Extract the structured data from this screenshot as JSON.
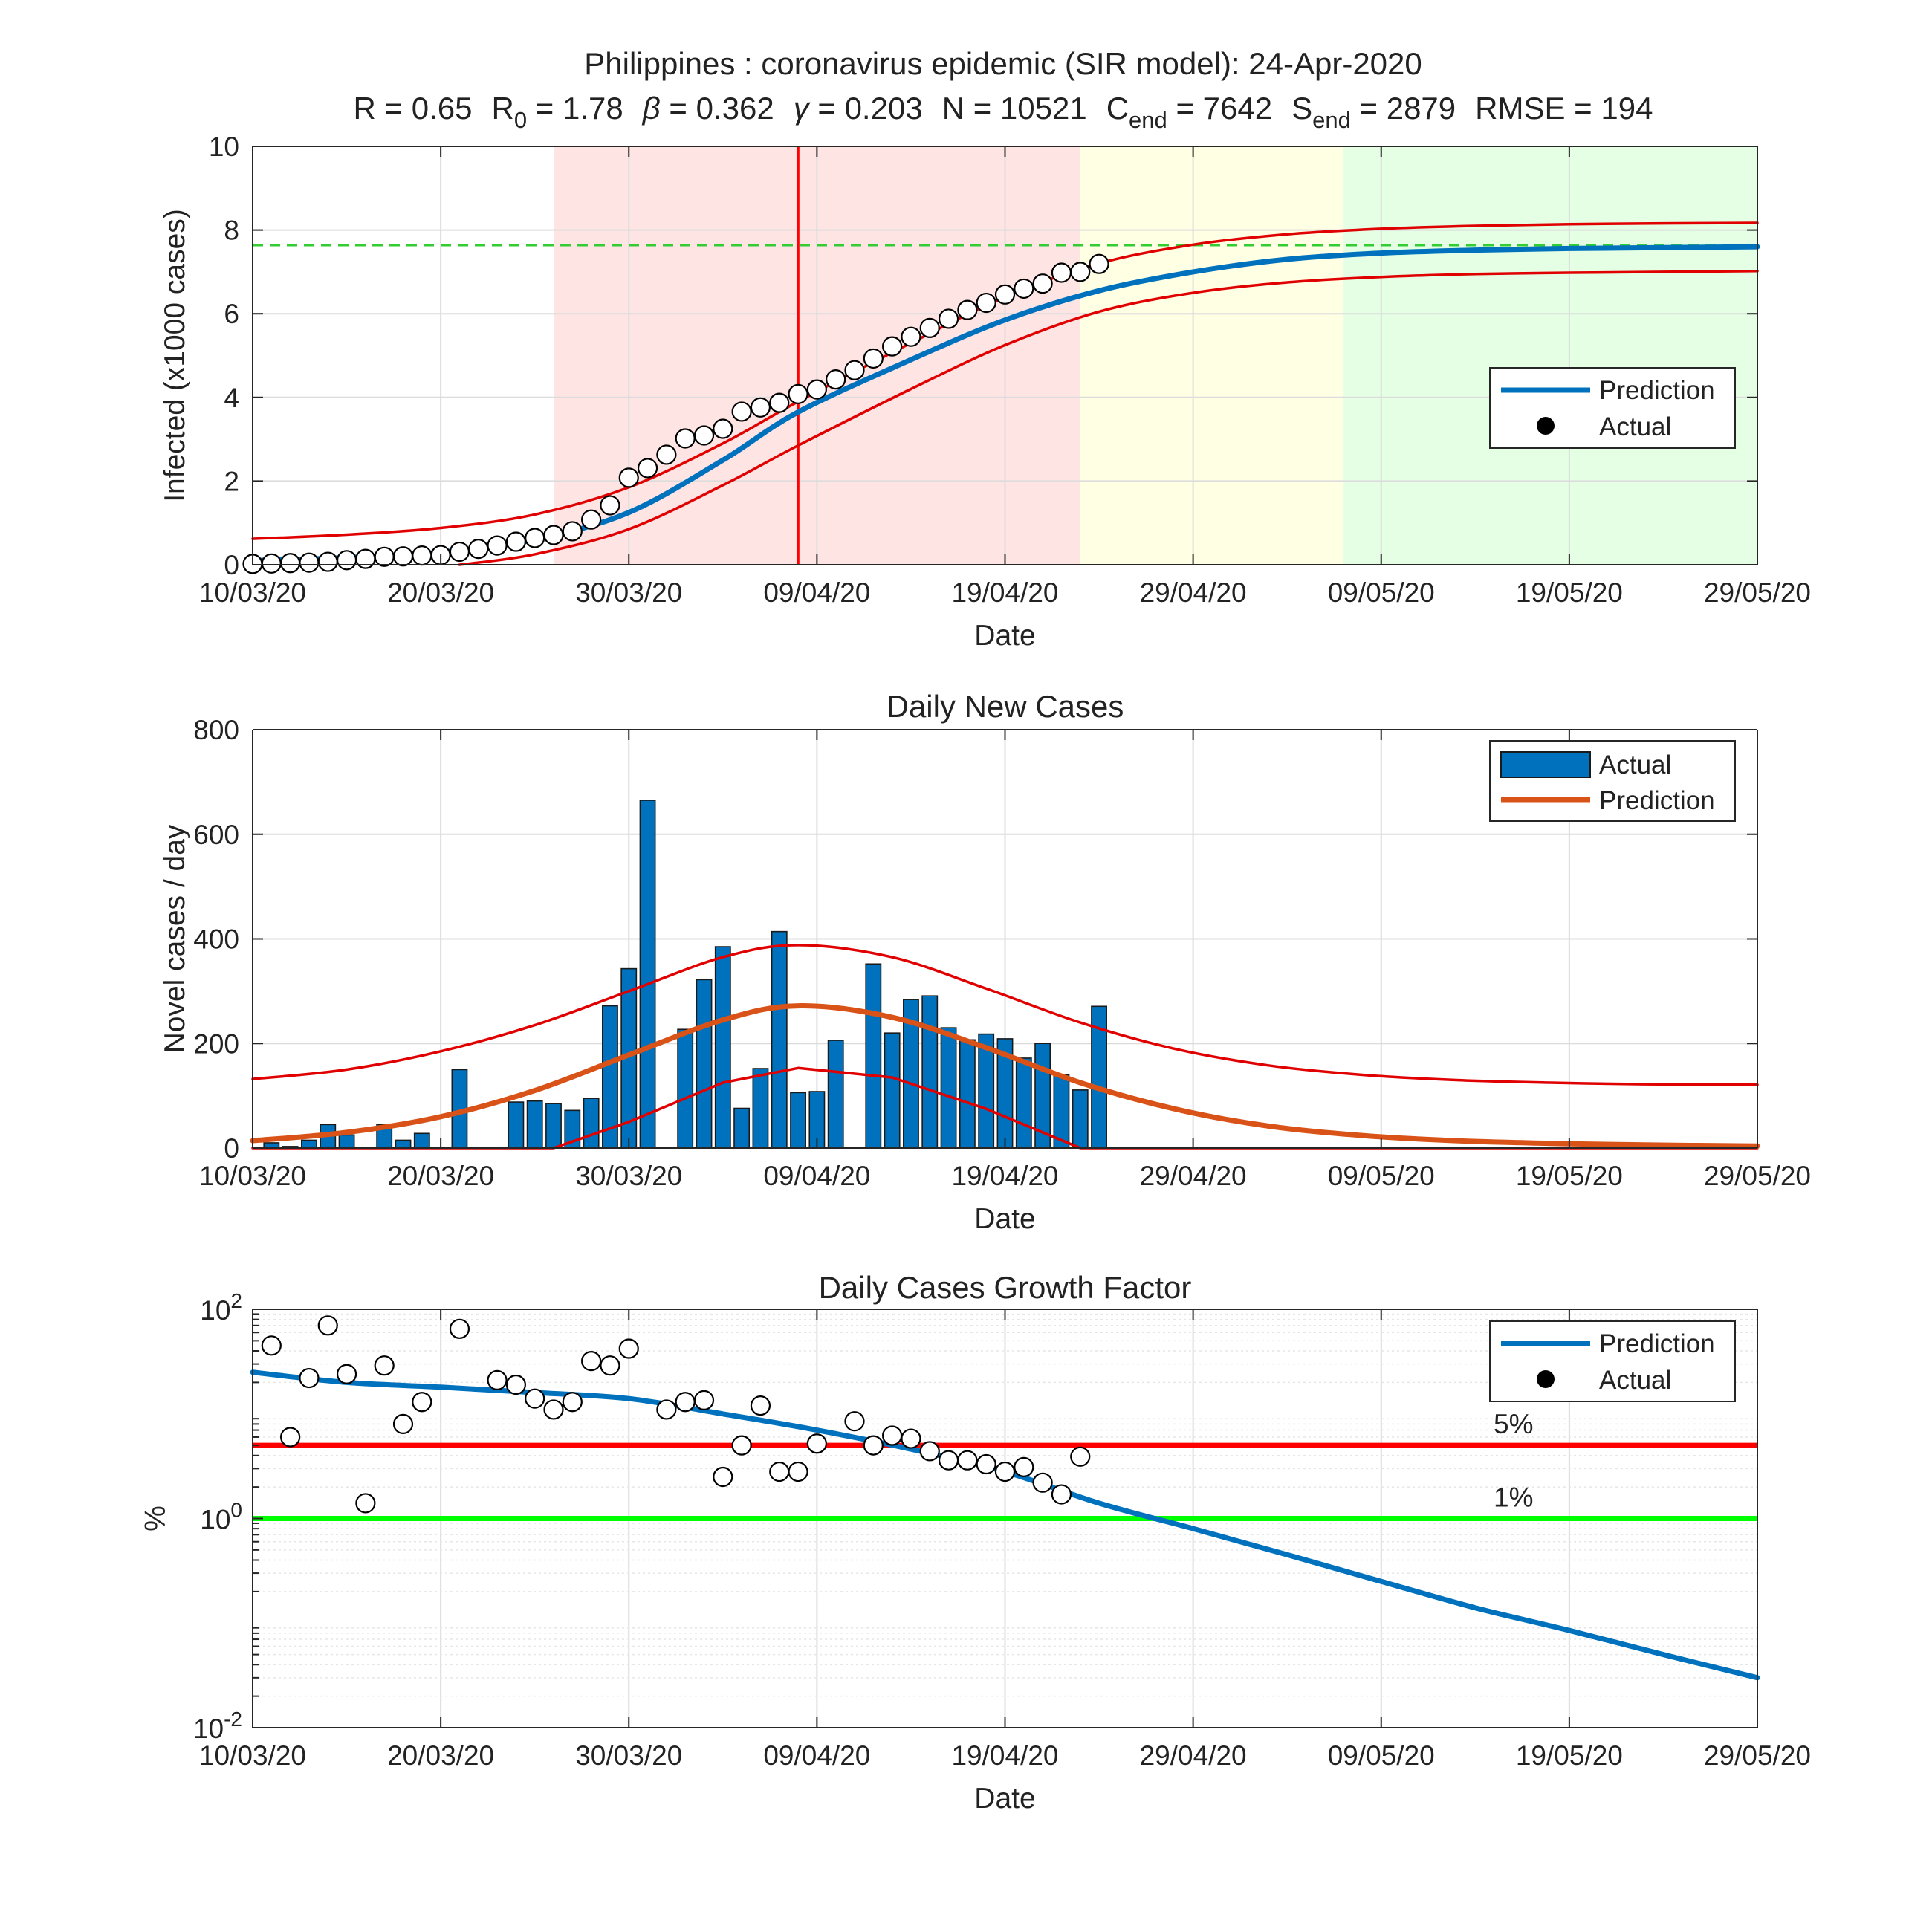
{
  "figure": {
    "title_line1": "Philippines : coronavirus epidemic (SIR model): 24-Apr-2020",
    "params": [
      {
        "label": "R",
        "sub": "",
        "value": "0.65"
      },
      {
        "label": "R",
        "sub": "0",
        "value": "1.78"
      },
      {
        "label": "β",
        "sub": "",
        "value": "0.362"
      },
      {
        "label": "γ",
        "sub": "",
        "value": "0.203"
      },
      {
        "label": "N",
        "sub": "",
        "value": "10521"
      },
      {
        "label": "C",
        "sub": "end",
        "value": "7642"
      },
      {
        "label": "S",
        "sub": "end",
        "value": "2879"
      },
      {
        "label": "RMSE",
        "sub": "",
        "value": "194"
      }
    ]
  },
  "colors": {
    "prediction_blue": "#0072BD",
    "prediction_orange": "#D95319",
    "bounds_red": "#E00000",
    "bar_blue": "#0072BD",
    "phase_red": "#FFE4E4",
    "phase_yellow": "#FFFFE4",
    "phase_green": "#E4FFE4",
    "cend_green": "#33CC33",
    "threshold_red": "#FF0000",
    "threshold_green": "#00FF00"
  },
  "chart_data": [
    {
      "type": "line",
      "title": "",
      "xlabel": "Date",
      "ylabel": "Infected (x1000 cases)",
      "x_ticks": [
        "10/03/20",
        "20/03/20",
        "30/03/20",
        "09/04/20",
        "19/04/20",
        "29/04/20",
        "09/05/20",
        "19/05/20",
        "29/05/20"
      ],
      "y_ticks": [
        "0",
        "2",
        "4",
        "6",
        "8",
        "10"
      ],
      "xlim": [
        "2020-03-10",
        "2020-05-29"
      ],
      "ylim": [
        0,
        10
      ],
      "grid": true,
      "legend_position": "right",
      "legend": [
        {
          "label": "Prediction",
          "marker": "line",
          "color": "#0072BD"
        },
        {
          "label": "Actual",
          "marker": "dot",
          "color": "#000000"
        }
      ],
      "phases": [
        {
          "from": "2020-03-26",
          "to": "2020-04-23",
          "color": "#FFE4E4"
        },
        {
          "from": "2020-04-23",
          "to": "2020-05-07",
          "color": "#FFFFE4"
        },
        {
          "from": "2020-05-07",
          "to": "2020-05-29",
          "color": "#E4FFE4"
        }
      ],
      "peak_line_date": "2020-04-08",
      "c_end_level": 7.642,
      "series": [
        {
          "name": "Prediction",
          "color": "#0072BD",
          "x": [
            "2020-03-10",
            "2020-03-15",
            "2020-03-20",
            "2020-03-25",
            "2020-03-30",
            "2020-04-04",
            "2020-04-08",
            "2020-04-14",
            "2020-04-19",
            "2020-04-24",
            "2020-04-29",
            "2020-05-04",
            "2020-05-09",
            "2020-05-14",
            "2020-05-19",
            "2020-05-24",
            "2020-05-29"
          ],
          "y": [
            0.1,
            0.17,
            0.3,
            0.6,
            1.25,
            2.5,
            3.65,
            4.9,
            5.85,
            6.55,
            7.0,
            7.3,
            7.45,
            7.52,
            7.56,
            7.58,
            7.6
          ]
        },
        {
          "name": "Upper bound",
          "color": "#E00000",
          "x": [
            "2020-03-10",
            "2020-03-15",
            "2020-03-20",
            "2020-03-25",
            "2020-03-30",
            "2020-04-04",
            "2020-04-08",
            "2020-04-14",
            "2020-04-19",
            "2020-04-24",
            "2020-04-29",
            "2020-05-04",
            "2020-05-09",
            "2020-05-14",
            "2020-05-19",
            "2020-05-24",
            "2020-05-29"
          ],
          "y": [
            0.62,
            0.72,
            0.88,
            1.2,
            1.85,
            2.9,
            3.9,
            5.3,
            6.4,
            7.2,
            7.65,
            7.9,
            8.03,
            8.1,
            8.14,
            8.16,
            8.17
          ]
        },
        {
          "name": "Lower bound",
          "color": "#E00000",
          "x": [
            "2020-03-21",
            "2020-03-25",
            "2020-03-30",
            "2020-04-04",
            "2020-04-08",
            "2020-04-14",
            "2020-04-19",
            "2020-04-24",
            "2020-04-29",
            "2020-05-04",
            "2020-05-09",
            "2020-05-14",
            "2020-05-19",
            "2020-05-24",
            "2020-05-29"
          ],
          "y": [
            0.0,
            0.25,
            0.85,
            1.9,
            2.85,
            4.2,
            5.25,
            6.05,
            6.5,
            6.75,
            6.88,
            6.95,
            6.98,
            7.0,
            7.02
          ]
        },
        {
          "name": "Actual",
          "color": "#000000",
          "x": [
            "2020-03-10",
            "2020-03-11",
            "2020-03-12",
            "2020-03-13",
            "2020-03-14",
            "2020-03-15",
            "2020-03-16",
            "2020-03-17",
            "2020-03-18",
            "2020-03-19",
            "2020-03-20",
            "2020-03-21",
            "2020-03-22",
            "2020-03-23",
            "2020-03-24",
            "2020-03-25",
            "2020-03-26",
            "2020-03-27",
            "2020-03-28",
            "2020-03-29",
            "2020-03-30",
            "2020-03-31",
            "2020-04-01",
            "2020-04-02",
            "2020-04-03",
            "2020-04-04",
            "2020-04-05",
            "2020-04-06",
            "2020-04-07",
            "2020-04-08",
            "2020-04-09",
            "2020-04-10",
            "2020-04-11",
            "2020-04-12",
            "2020-04-13",
            "2020-04-14",
            "2020-04-15",
            "2020-04-16",
            "2020-04-17",
            "2020-04-18",
            "2020-04-19",
            "2020-04-20",
            "2020-04-21",
            "2020-04-22",
            "2020-04-23",
            "2020-04-24"
          ],
          "y": [
            0.02,
            0.03,
            0.04,
            0.05,
            0.07,
            0.11,
            0.14,
            0.19,
            0.2,
            0.22,
            0.23,
            0.31,
            0.38,
            0.46,
            0.55,
            0.64,
            0.71,
            0.8,
            1.08,
            1.42,
            2.08,
            2.31,
            2.63,
            3.02,
            3.09,
            3.25,
            3.66,
            3.76,
            3.87,
            4.08,
            4.19,
            4.43,
            4.65,
            4.93,
            5.22,
            5.45,
            5.66,
            5.88,
            6.09,
            6.26,
            6.46,
            6.6,
            6.72,
            6.98,
            7.0,
            7.19
          ]
        }
      ]
    },
    {
      "type": "bar",
      "title": "Daily New Cases",
      "xlabel": "Date",
      "ylabel": "Novel cases / day",
      "x_ticks": [
        "10/03/20",
        "20/03/20",
        "30/03/20",
        "09/04/20",
        "19/04/20",
        "29/04/20",
        "09/05/20",
        "19/05/20",
        "29/05/20"
      ],
      "y_ticks": [
        "0",
        "200",
        "400",
        "600",
        "800"
      ],
      "xlim": [
        "2020-03-10",
        "2020-05-29"
      ],
      "ylim": [
        0,
        800
      ],
      "grid": true,
      "legend_position": "top-right",
      "legend": [
        {
          "label": "Actual",
          "marker": "bar",
          "color": "#0072BD"
        },
        {
          "label": "Prediction",
          "marker": "line",
          "color": "#D95319"
        }
      ],
      "bars": {
        "name": "Actual",
        "x": [
          "2020-03-11",
          "2020-03-12",
          "2020-03-13",
          "2020-03-14",
          "2020-03-15",
          "2020-03-16",
          "2020-03-17",
          "2020-03-18",
          "2020-03-19",
          "2020-03-20",
          "2020-03-21",
          "2020-03-22",
          "2020-03-23",
          "2020-03-24",
          "2020-03-25",
          "2020-03-26",
          "2020-03-27",
          "2020-03-28",
          "2020-03-29",
          "2020-03-30",
          "2020-03-31",
          "2020-04-01",
          "2020-04-02",
          "2020-04-03",
          "2020-04-04",
          "2020-04-05",
          "2020-04-06",
          "2020-04-07",
          "2020-04-08",
          "2020-04-09",
          "2020-04-10",
          "2020-04-11",
          "2020-04-12",
          "2020-04-13",
          "2020-04-14",
          "2020-04-15",
          "2020-04-16",
          "2020-04-17",
          "2020-04-18",
          "2020-04-19",
          "2020-04-20",
          "2020-04-21",
          "2020-04-22",
          "2020-04-23",
          "2020-04-24"
        ],
        "values": [
          10,
          3,
          15,
          45,
          25,
          0,
          45,
          15,
          28,
          0,
          150,
          0,
          0,
          88,
          90,
          85,
          72,
          95,
          272,
          343,
          665,
          0,
          227,
          322,
          385,
          76,
          152,
          414,
          106,
          108,
          206,
          0,
          352,
          220,
          284,
          291,
          230,
          207,
          218,
          209,
          172,
          200,
          140,
          111,
          271
        ]
      },
      "series": [
        {
          "name": "Prediction",
          "color": "#D95319",
          "x": [
            "2020-03-10",
            "2020-03-15",
            "2020-03-20",
            "2020-03-25",
            "2020-03-30",
            "2020-04-04",
            "2020-04-08",
            "2020-04-13",
            "2020-04-18",
            "2020-04-23",
            "2020-04-28",
            "2020-05-03",
            "2020-05-08",
            "2020-05-13",
            "2020-05-18",
            "2020-05-23",
            "2020-05-29"
          ],
          "y": [
            14,
            30,
            60,
            110,
            178,
            245,
            272,
            250,
            192,
            125,
            75,
            42,
            24,
            14,
            9,
            6,
            4
          ]
        },
        {
          "name": "Upper bound",
          "color": "#E00000",
          "x": [
            "2020-03-10",
            "2020-03-15",
            "2020-03-20",
            "2020-03-25",
            "2020-03-30",
            "2020-04-04",
            "2020-04-08",
            "2020-04-13",
            "2020-04-18",
            "2020-04-23",
            "2020-04-28",
            "2020-05-03",
            "2020-05-08",
            "2020-05-13",
            "2020-05-18",
            "2020-05-23",
            "2020-05-29"
          ],
          "y": [
            132,
            150,
            185,
            235,
            300,
            365,
            388,
            365,
            305,
            240,
            190,
            158,
            140,
            130,
            125,
            122,
            121
          ]
        },
        {
          "name": "Lower bound",
          "color": "#E00000",
          "x": [
            "2020-03-10",
            "2020-03-26",
            "2020-03-30",
            "2020-04-04",
            "2020-04-08",
            "2020-04-13",
            "2020-04-18",
            "2020-04-22",
            "2020-04-23",
            "2020-05-29"
          ],
          "y": [
            0,
            0,
            50,
            125,
            153,
            135,
            75,
            15,
            0,
            0
          ]
        }
      ]
    },
    {
      "type": "scatter",
      "title": "Daily Cases Growth Factor",
      "xlabel": "Date",
      "ylabel": "%",
      "x_ticks": [
        "10/03/20",
        "20/03/20",
        "30/03/20",
        "09/04/20",
        "19/04/20",
        "29/04/20",
        "09/05/20",
        "19/05/20",
        "29/05/20"
      ],
      "y_ticks": [
        {
          "base": "10",
          "exp": "2"
        },
        {
          "base": "10",
          "exp": "0"
        },
        {
          "base": "10",
          "exp": "-2"
        }
      ],
      "yscale": "log",
      "xlim": [
        "2020-03-10",
        "2020-05-29"
      ],
      "ylim": [
        0.01,
        100
      ],
      "grid": true,
      "legend_position": "top-right",
      "legend": [
        {
          "label": "Prediction",
          "marker": "line",
          "color": "#0072BD"
        },
        {
          "label": "Actual",
          "marker": "dot",
          "color": "#000000"
        }
      ],
      "thresholds": [
        {
          "label": "5%",
          "value": 5,
          "color": "#FF0000"
        },
        {
          "label": "1%",
          "value": 1,
          "color": "#00FF00"
        }
      ],
      "series": [
        {
          "name": "Prediction",
          "color": "#0072BD",
          "x": [
            "2020-03-10",
            "2020-03-15",
            "2020-03-20",
            "2020-03-25",
            "2020-03-30",
            "2020-04-04",
            "2020-04-09",
            "2020-04-14",
            "2020-04-19",
            "2020-04-24",
            "2020-04-29",
            "2020-05-04",
            "2020-05-09",
            "2020-05-14",
            "2020-05-19",
            "2020-05-24",
            "2020-05-29"
          ],
          "y": [
            25,
            20,
            18,
            16,
            14,
            10,
            7,
            4.6,
            2.8,
            1.4,
            0.8,
            0.45,
            0.25,
            0.14,
            0.085,
            0.05,
            0.03
          ]
        },
        {
          "name": "Actual",
          "color": "#000000",
          "x": [
            "2020-03-11",
            "2020-03-12",
            "2020-03-13",
            "2020-03-14",
            "2020-03-15",
            "2020-03-16",
            "2020-03-17",
            "2020-03-18",
            "2020-03-19",
            "2020-03-21",
            "2020-03-23",
            "2020-03-24",
            "2020-03-25",
            "2020-03-26",
            "2020-03-27",
            "2020-03-28",
            "2020-03-29",
            "2020-03-30",
            "2020-04-01",
            "2020-04-02",
            "2020-04-03",
            "2020-04-04",
            "2020-04-05",
            "2020-04-06",
            "2020-04-07",
            "2020-04-08",
            "2020-04-09",
            "2020-04-11",
            "2020-04-12",
            "2020-04-13",
            "2020-04-14",
            "2020-04-15",
            "2020-04-16",
            "2020-04-17",
            "2020-04-18",
            "2020-04-19",
            "2020-04-20",
            "2020-04-21",
            "2020-04-22",
            "2020-04-23"
          ],
          "y": [
            45,
            6,
            22,
            70,
            24,
            1.4,
            29,
            8,
            13,
            65,
            21,
            19,
            14,
            11,
            13,
            32,
            29,
            42,
            11,
            13,
            13.5,
            2.5,
            5,
            12,
            2.8,
            2.8,
            5.2,
            8.5,
            5,
            6.2,
            5.8,
            4.4,
            3.6,
            3.6,
            3.3,
            2.8,
            3.1,
            2.2,
            1.7,
            3.9
          ]
        }
      ]
    }
  ]
}
